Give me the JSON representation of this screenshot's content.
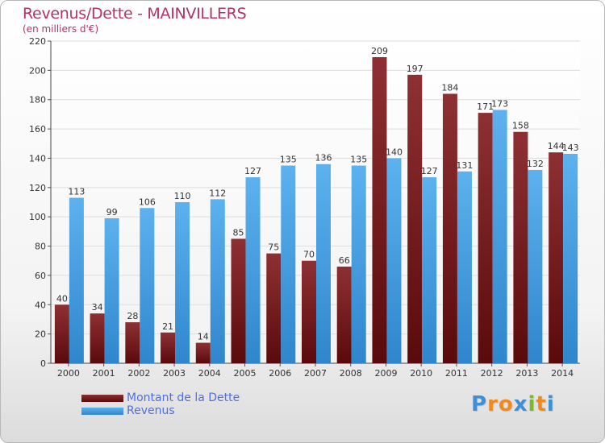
{
  "chart_data": {
    "type": "bar",
    "title": "Revenus/Dette - MAINVILLERS",
    "subtitle": "(en milliers d'€)",
    "categories": [
      "2000",
      "2001",
      "2002",
      "2003",
      "2004",
      "2005",
      "2006",
      "2007",
      "2008",
      "2009",
      "2010",
      "2011",
      "2012",
      "2013",
      "2014"
    ],
    "series": [
      {
        "name": "Montant de la Dette",
        "color": "#7a1f22",
        "values": [
          40,
          34,
          28,
          21,
          14,
          85,
          75,
          70,
          66,
          209,
          197,
          184,
          171,
          158,
          144
        ]
      },
      {
        "name": "Revenus",
        "color": "#4aa3e6",
        "values": [
          113,
          99,
          106,
          110,
          112,
          127,
          135,
          136,
          135,
          140,
          127,
          131,
          173,
          132,
          143
        ]
      }
    ],
    "ylim": [
      0,
      220
    ],
    "yticks": [
      0,
      20,
      40,
      60,
      80,
      100,
      120,
      140,
      160,
      180,
      200,
      220
    ],
    "grid": true,
    "legend_position": "bottom-left"
  },
  "logo": {
    "letters": [
      "P",
      "r",
      "o",
      "x",
      "i",
      "t",
      "i"
    ],
    "colors": [
      "#3e8fd4",
      "#f08a1c",
      "#f08a1c",
      "#3e8fd4",
      "#7cb82f",
      "#f08a1c",
      "#3e8fd4"
    ]
  }
}
